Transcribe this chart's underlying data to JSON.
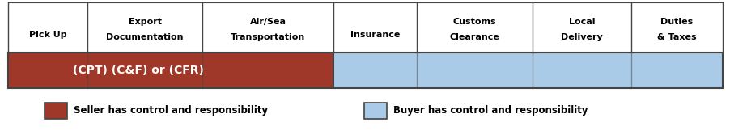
{
  "columns": [
    "Pick Up",
    "Export\nDocumentation",
    "Air/Sea\nTransportation",
    "Insurance",
    "Customs\nClearance",
    "Local\nDelivery",
    "Duties\n& Taxes"
  ],
  "col_widths": [
    1.0,
    1.45,
    1.65,
    1.05,
    1.45,
    1.25,
    1.15
  ],
  "seller_cols": 3,
  "bar_label": "(CPT) (C&F) or (CFR)",
  "seller_color": "#A0382A",
  "buyer_color": "#AACBE8",
  "bar_edge_color": "#444444",
  "legend_seller_text": "Seller has control and responsibility",
  "legend_buyer_text": "Buyer has control and responsibility",
  "background_color": "#ffffff",
  "fig_width": 9.03,
  "fig_height": 1.67,
  "dpi": 100
}
